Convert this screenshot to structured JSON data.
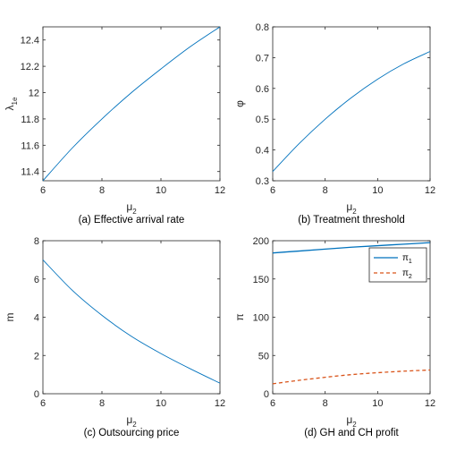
{
  "chart_data": [
    {
      "type": "line",
      "caption": "(a) Effective arrival rate",
      "xlabel": {
        "base": "μ",
        "sub": "2"
      },
      "ylabel": {
        "base": "λ",
        "sub": "1e"
      },
      "xlim": [
        6,
        12
      ],
      "ylim": [
        11.33,
        12.5
      ],
      "xticks": [
        6,
        8,
        10,
        12
      ],
      "yticks": [
        11.4,
        11.6,
        11.8,
        12,
        12.2,
        12.4
      ],
      "series": [
        {
          "color": "#0072bd",
          "dash": "solid",
          "x": [
            6,
            7,
            8,
            9,
            10,
            11,
            12
          ],
          "y": [
            11.33,
            11.58,
            11.8,
            12.0,
            12.18,
            12.35,
            12.5
          ]
        }
      ]
    },
    {
      "type": "line",
      "caption": "(b) Treatment threshold",
      "xlabel": {
        "base": "μ",
        "sub": "2"
      },
      "ylabel": {
        "base": "φ",
        "sub": ""
      },
      "xlim": [
        6,
        12
      ],
      "ylim": [
        0.3,
        0.8
      ],
      "xticks": [
        6,
        8,
        10,
        12
      ],
      "yticks": [
        0.3,
        0.4,
        0.5,
        0.6,
        0.7,
        0.8
      ],
      "series": [
        {
          "color": "#0072bd",
          "dash": "solid",
          "x": [
            6,
            7,
            8,
            9,
            10,
            11,
            12
          ],
          "y": [
            0.33,
            0.42,
            0.5,
            0.57,
            0.63,
            0.68,
            0.72
          ]
        }
      ]
    },
    {
      "type": "line",
      "caption": "(c) Outsourcing price",
      "xlabel": {
        "base": "μ",
        "sub": "2"
      },
      "ylabel": {
        "base": "m",
        "sub": ""
      },
      "xlim": [
        6,
        12
      ],
      "ylim": [
        0,
        8
      ],
      "xticks": [
        6,
        8,
        10,
        12
      ],
      "yticks": [
        0,
        2,
        4,
        6,
        8
      ],
      "series": [
        {
          "color": "#0072bd",
          "dash": "solid",
          "x": [
            6,
            7,
            8,
            9,
            10,
            11,
            12
          ],
          "y": [
            7.0,
            5.4,
            4.1,
            3.0,
            2.1,
            1.3,
            0.55
          ]
        }
      ]
    },
    {
      "type": "line",
      "caption": "(d) GH and CH profit",
      "xlabel": {
        "base": "μ",
        "sub": "2"
      },
      "ylabel": {
        "base": "π",
        "sub": ""
      },
      "xlim": [
        6,
        12
      ],
      "ylim": [
        0,
        200
      ],
      "xticks": [
        6,
        8,
        10,
        12
      ],
      "yticks": [
        0,
        50,
        100,
        150,
        200
      ],
      "legend": "top-right",
      "series": [
        {
          "name": "π",
          "sub": "1",
          "color": "#0072bd",
          "dash": "solid",
          "x": [
            6,
            7,
            8,
            9,
            10,
            11,
            12
          ],
          "y": [
            184,
            186.5,
            189,
            191.5,
            193.5,
            195.5,
            197.5
          ]
        },
        {
          "name": "π",
          "sub": "2",
          "color": "#d95319",
          "dash": "dashed",
          "x": [
            6,
            7,
            8,
            9,
            10,
            11,
            12
          ],
          "y": [
            13,
            17.5,
            21.5,
            25,
            27.5,
            29.5,
            31
          ]
        }
      ]
    }
  ]
}
